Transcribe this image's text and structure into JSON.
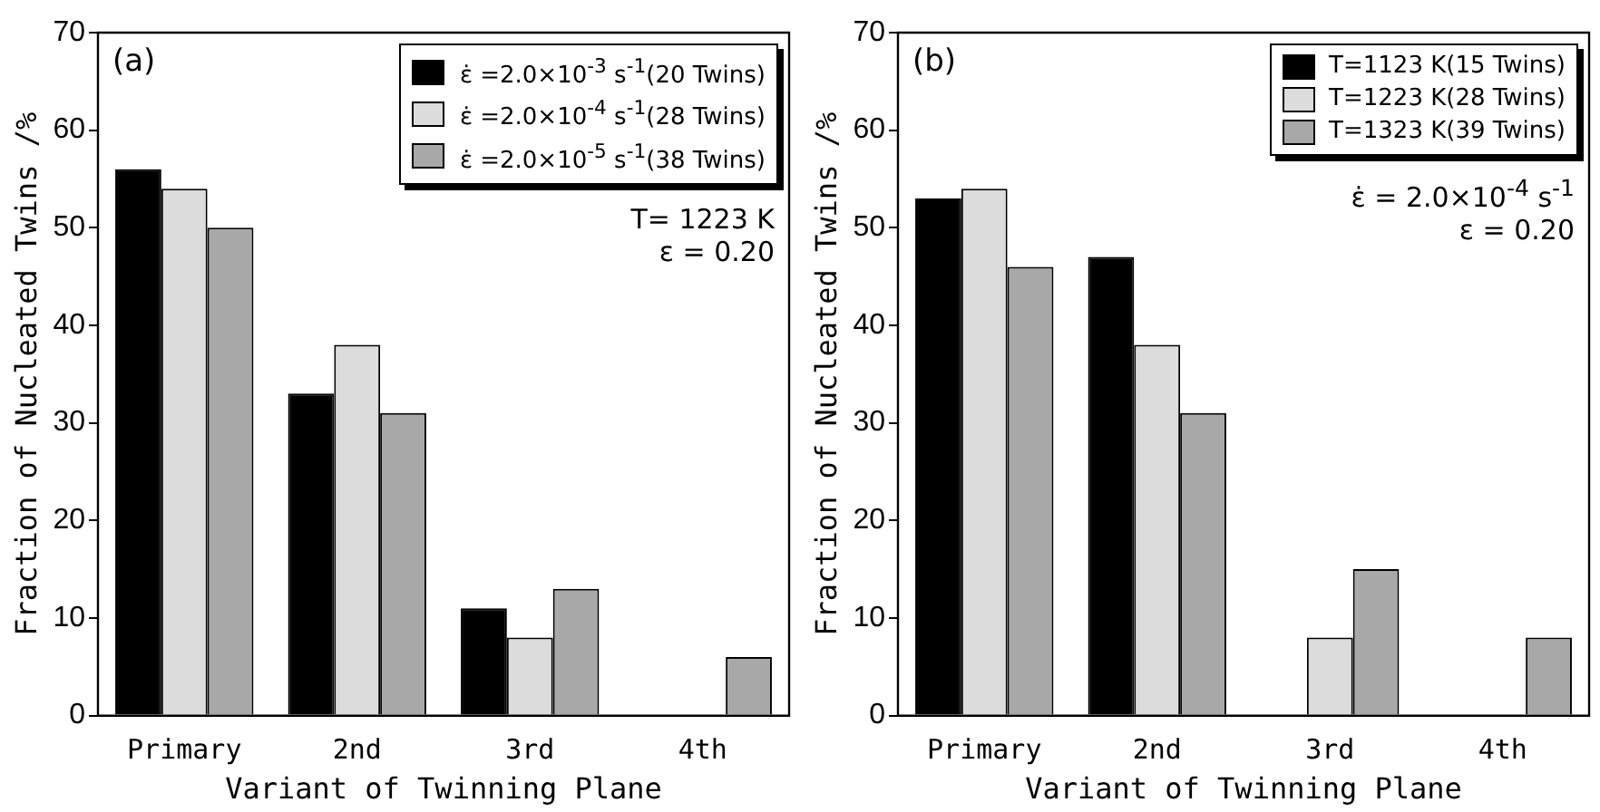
{
  "chart_data": [
    {
      "type": "bar",
      "xlabel": "Variant of Twinning Plane",
      "ylabel": "Fraction of Nucleated Twins /%",
      "categories": [
        "Primary",
        "2nd",
        "3rd",
        "4th"
      ],
      "ylim": [
        0,
        70
      ],
      "yticks": [
        0,
        10,
        20,
        30,
        40,
        50,
        60,
        70
      ],
      "grid": false,
      "legend": "top right",
      "series": [
        {
          "name": "ε̇ =2.0×10$^{-3}$ s$^{-1}$(20 Twins)",
          "color": "#000000",
          "values": [
            56,
            33,
            11,
            0
          ]
        },
        {
          "name": "ε̇ =2.0×10$^{-4}$ s$^{-1}$(28 Twins)",
          "color": "#dcdcdc",
          "values": [
            54,
            38,
            8,
            0
          ]
        },
        {
          "name": "ε̇ =2.0×10$^{-5}$ s$^{-1}$(38 Twins)",
          "color": "#a8a8a8",
          "values": [
            50,
            31,
            13,
            6
          ]
        }
      ],
      "annotations": [
        "(a)",
        "T= 1223 K",
        "ε = 0.20"
      ]
    },
    {
      "type": "bar",
      "xlabel": "Variant of Twinning Plane",
      "ylabel": "Fraction of Nucleated Twins /%",
      "categories": [
        "Primary",
        "2nd",
        "3rd",
        "4th"
      ],
      "ylim": [
        0,
        70
      ],
      "yticks": [
        0,
        10,
        20,
        30,
        40,
        50,
        60,
        70
      ],
      "grid": false,
      "legend": "top right",
      "series": [
        {
          "name": "T=1123 K(15 Twins)",
          "color": "#000000",
          "values": [
            53,
            47,
            0,
            0
          ]
        },
        {
          "name": "T=1223 K(28 Twins)",
          "color": "#dcdcdc",
          "values": [
            54,
            38,
            8,
            0
          ]
        },
        {
          "name": "T=1323 K(39 Twins)",
          "color": "#a8a8a8",
          "values": [
            46,
            31,
            15,
            8
          ]
        }
      ],
      "annotations": [
        "(b)",
        "ε̇ = 2.0×10$^{-4}$ s$^{-1}$",
        "ε = 0.20"
      ]
    }
  ]
}
